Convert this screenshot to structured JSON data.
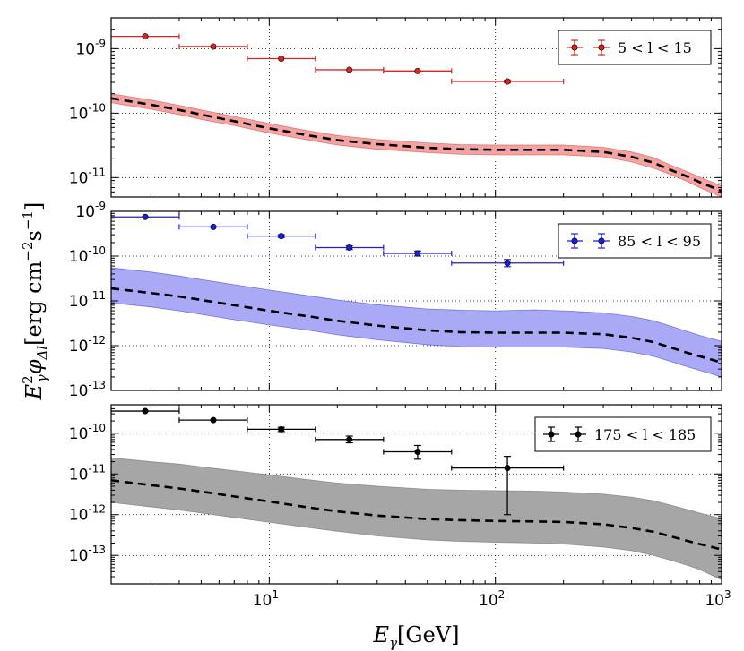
{
  "chart_data": {
    "shared": {
      "type": "scatter",
      "x_scale": "log",
      "xlim": [
        2,
        1000
      ],
      "xlabel_main": "E",
      "xlabel_sub": "γ",
      "xlabel_unit": "[GeV]",
      "x_ticks": [
        {
          "value": 10,
          "base": "10",
          "exp": "1"
        },
        {
          "value": 100,
          "base": "10",
          "exp": "2"
        },
        {
          "value": 1000,
          "base": "10",
          "exp": "3"
        }
      ],
      "ylabel_main": "E",
      "ylabel_sup": "2",
      "ylabel_sub": "γ",
      "ylabel_phi": "φ",
      "ylabel_phi_sub": "Δl",
      "ylabel_unit": "[erg cm",
      "ylabel_exp1": "−2",
      "ylabel_s": "s",
      "ylabel_exp2": "−1",
      "ylabel_close": "]",
      "grid": true,
      "grid_style": "dotted"
    },
    "panels": [
      {
        "name": "panel-1",
        "legend": "5 < l < 15",
        "legend_position": "top-right",
        "color": "#d62728",
        "band_fill": "#f4a3a3",
        "y_scale": "log",
        "ylim": [
          5e-12,
          3e-09
        ],
        "y_ticks": [
          {
            "value": 1e-09,
            "base": "10",
            "exp": "-9"
          },
          {
            "value": 1e-10,
            "base": "10",
            "exp": "-10"
          },
          {
            "value": 1e-11,
            "base": "10",
            "exp": "-11"
          }
        ],
        "points": [
          {
            "x": 2.83,
            "xlo": 2.0,
            "xhi": 4.0,
            "y": 1.55e-09,
            "ylo": 1.5e-09,
            "yhi": 1.6e-09
          },
          {
            "x": 5.66,
            "xlo": 4.0,
            "xhi": 8.0,
            "y": 1.08e-09,
            "ylo": 1.04e-09,
            "yhi": 1.12e-09
          },
          {
            "x": 11.3,
            "xlo": 8.0,
            "xhi": 16.0,
            "y": 7e-10,
            "ylo": 6.7e-10,
            "yhi": 7.3e-10
          },
          {
            "x": 22.6,
            "xlo": 16.0,
            "xhi": 32.0,
            "y": 4.7e-10,
            "ylo": 4.5e-10,
            "yhi": 4.9e-10
          },
          {
            "x": 45.3,
            "xlo": 32.0,
            "xhi": 64.0,
            "y": 4.5e-10,
            "ylo": 4.3e-10,
            "yhi": 4.7e-10
          },
          {
            "x": 113,
            "xlo": 64.0,
            "xhi": 200.0,
            "y": 3.1e-10,
            "ylo": 2.95e-10,
            "yhi": 3.25e-10
          }
        ],
        "model_x": [
          2,
          3,
          4,
          5,
          7,
          10,
          15,
          20,
          30,
          50,
          70,
          100,
          150,
          200,
          300,
          400,
          500,
          600,
          700,
          800,
          1000
        ],
        "model_y": [
          1.7e-10,
          1.35e-10,
          1.12e-10,
          9.5e-11,
          7.5e-11,
          5.8e-11,
          4.5e-11,
          3.8e-11,
          3.3e-11,
          2.9e-11,
          2.75e-11,
          2.7e-11,
          2.7e-11,
          2.7e-11,
          2.5e-11,
          2.1e-11,
          1.7e-11,
          1.3e-11,
          1.05e-11,
          8.5e-12,
          6.2e-12
        ],
        "band_lower_y": [
          1.45e-10,
          1.15e-10,
          9.5e-11,
          8e-11,
          6.4e-11,
          4.9e-11,
          3.8e-11,
          3.2e-11,
          2.75e-11,
          2.45e-11,
          2.3e-11,
          2.25e-11,
          2.25e-11,
          2.25e-11,
          2.1e-11,
          1.75e-11,
          1.4e-11,
          1.1e-11,
          8.8e-12,
          7e-12,
          5e-12
        ],
        "band_upper_y": [
          2e-10,
          1.6e-10,
          1.32e-10,
          1.12e-10,
          8.9e-11,
          6.9e-11,
          5.3e-11,
          4.5e-11,
          3.9e-11,
          3.45e-11,
          3.25e-11,
          3.2e-11,
          3.2e-11,
          3.2e-11,
          2.95e-11,
          2.5e-11,
          2.05e-11,
          1.55e-11,
          1.25e-11,
          1.02e-11,
          7.4e-12
        ]
      },
      {
        "name": "panel-2",
        "legend": "85 < l < 95",
        "legend_position": "top-right",
        "color": "#1f1fcc",
        "band_fill": "#a9a9f5",
        "y_scale": "log",
        "ylim": [
          1e-13,
          1e-09
        ],
        "y_ticks": [
          {
            "value": 1e-09,
            "base": "10",
            "exp": "-9"
          },
          {
            "value": 1e-10,
            "base": "10",
            "exp": "-10"
          },
          {
            "value": 1e-11,
            "base": "10",
            "exp": "-11"
          },
          {
            "value": 1e-12,
            "base": "10",
            "exp": "-12"
          },
          {
            "value": 1e-13,
            "base": "10",
            "exp": "-13"
          }
        ],
        "points": [
          {
            "x": 2.83,
            "xlo": 2.0,
            "xhi": 4.0,
            "y": 7.5e-10,
            "ylo": 7.1e-10,
            "yhi": 7.9e-10
          },
          {
            "x": 5.66,
            "xlo": 4.0,
            "xhi": 8.0,
            "y": 4.5e-10,
            "ylo": 4.2e-10,
            "yhi": 4.8e-10
          },
          {
            "x": 11.3,
            "xlo": 8.0,
            "xhi": 16.0,
            "y": 2.8e-10,
            "ylo": 2.6e-10,
            "yhi": 3e-10
          },
          {
            "x": 22.6,
            "xlo": 16.0,
            "xhi": 32.0,
            "y": 1.55e-10,
            "ylo": 1.4e-10,
            "yhi": 1.7e-10
          },
          {
            "x": 45.3,
            "xlo": 32.0,
            "xhi": 64.0,
            "y": 1.15e-10,
            "ylo": 1e-10,
            "yhi": 1.3e-10
          },
          {
            "x": 113,
            "xlo": 64.0,
            "xhi": 200.0,
            "y": 7e-11,
            "ylo": 5.8e-11,
            "yhi": 8.4e-11
          }
        ],
        "model_x": [
          2,
          3,
          4,
          5,
          7,
          10,
          15,
          20,
          30,
          50,
          70,
          100,
          150,
          200,
          300,
          400,
          500,
          600,
          700,
          800,
          1000
        ],
        "model_y": [
          1.9e-11,
          1.5e-11,
          1.25e-11,
          1.05e-11,
          8e-12,
          6e-12,
          4.5e-12,
          3.6e-12,
          2.8e-12,
          2.2e-12,
          2e-12,
          1.95e-12,
          1.95e-12,
          1.95e-12,
          1.8e-12,
          1.5e-12,
          1.2e-12,
          9e-13,
          7e-13,
          5.8e-13,
          4.2e-13
        ],
        "band_lower_y": [
          9e-12,
          7.3e-12,
          6e-12,
          5e-12,
          3.8e-12,
          2.9e-12,
          2.2e-12,
          1.75e-12,
          1.35e-12,
          1.05e-12,
          9.5e-13,
          9.3e-13,
          9.3e-13,
          9.3e-13,
          8.6e-13,
          7.2e-13,
          5.8e-13,
          4.4e-13,
          3.4e-13,
          2.8e-13,
          2e-13
        ],
        "band_upper_y": [
          5.5e-11,
          4.4e-11,
          3.6e-11,
          3e-11,
          2.3e-11,
          1.75e-11,
          1.3e-11,
          1.05e-11,
          8.2e-12,
          6.6e-12,
          6.2e-12,
          6e-12,
          6.3e-12,
          6e-12,
          5.4e-12,
          4.5e-12,
          3.6e-12,
          2.7e-12,
          2.1e-12,
          1.7e-12,
          1.25e-12
        ]
      },
      {
        "name": "panel-3",
        "legend": "175 < l < 185",
        "legend_position": "top-right",
        "color": "#000000",
        "band_fill": "#a6a6a6",
        "y_scale": "log",
        "ylim": [
          2e-14,
          5e-10
        ],
        "y_ticks": [
          {
            "value": 1e-10,
            "base": "10",
            "exp": "-10"
          },
          {
            "value": 1e-11,
            "base": "10",
            "exp": "-11"
          },
          {
            "value": 1e-12,
            "base": "10",
            "exp": "-12"
          },
          {
            "value": 1e-13,
            "base": "10",
            "exp": "-13"
          }
        ],
        "points": [
          {
            "x": 2.83,
            "xlo": 2.0,
            "xhi": 4.0,
            "y": 3.5e-10,
            "ylo": 3.3e-10,
            "yhi": 3.7e-10
          },
          {
            "x": 5.66,
            "xlo": 4.0,
            "xhi": 8.0,
            "y": 2.1e-10,
            "ylo": 1.95e-10,
            "yhi": 2.25e-10
          },
          {
            "x": 11.3,
            "xlo": 8.0,
            "xhi": 16.0,
            "y": 1.25e-10,
            "ylo": 1.1e-10,
            "yhi": 1.4e-10
          },
          {
            "x": 22.6,
            "xlo": 16.0,
            "xhi": 32.0,
            "y": 7e-11,
            "ylo": 5.8e-11,
            "yhi": 8.5e-11
          },
          {
            "x": 45.3,
            "xlo": 32.0,
            "xhi": 64.0,
            "y": 3.5e-11,
            "ylo": 2.3e-11,
            "yhi": 5e-11
          },
          {
            "x": 113,
            "xlo": 64.0,
            "xhi": 200.0,
            "y": 1.4e-11,
            "ylo": 1e-12,
            "yhi": 2.7e-11
          }
        ],
        "model_x": [
          2,
          3,
          4,
          5,
          7,
          10,
          15,
          20,
          30,
          50,
          70,
          100,
          150,
          200,
          300,
          400,
          500,
          600,
          700,
          800,
          1000
        ],
        "model_y": [
          7e-12,
          5.3e-12,
          4.4e-12,
          3.7e-12,
          2.8e-12,
          2.1e-12,
          1.5e-12,
          1.2e-12,
          9.5e-13,
          7.8e-13,
          7.3e-13,
          7e-13,
          6.8e-13,
          6.6e-13,
          5.8e-13,
          4.7e-13,
          3.8e-13,
          2.9e-13,
          2.3e-13,
          1.9e-13,
          1.4e-13
        ],
        "band_lower_y": [
          2e-12,
          1.55e-12,
          1.3e-12,
          1.1e-12,
          8.5e-13,
          6.5e-13,
          4.8e-13,
          3.9e-13,
          3e-13,
          2.4e-13,
          2.2e-13,
          2.1e-13,
          2e-13,
          1.9e-13,
          1.6e-13,
          1.3e-13,
          1e-13,
          7.5e-14,
          5.8e-14,
          4.5e-14,
          2.5e-14
        ],
        "band_upper_y": [
          2.5e-11,
          2e-11,
          1.75e-11,
          1.5e-11,
          1.2e-11,
          9.5e-12,
          7.2e-12,
          6e-12,
          5e-12,
          4.2e-12,
          4e-12,
          3.9e-12,
          3.8e-12,
          3.6e-12,
          3.2e-12,
          2.7e-12,
          2.2e-12,
          1.7e-12,
          1.35e-12,
          1.1e-12,
          8e-13
        ]
      }
    ]
  }
}
